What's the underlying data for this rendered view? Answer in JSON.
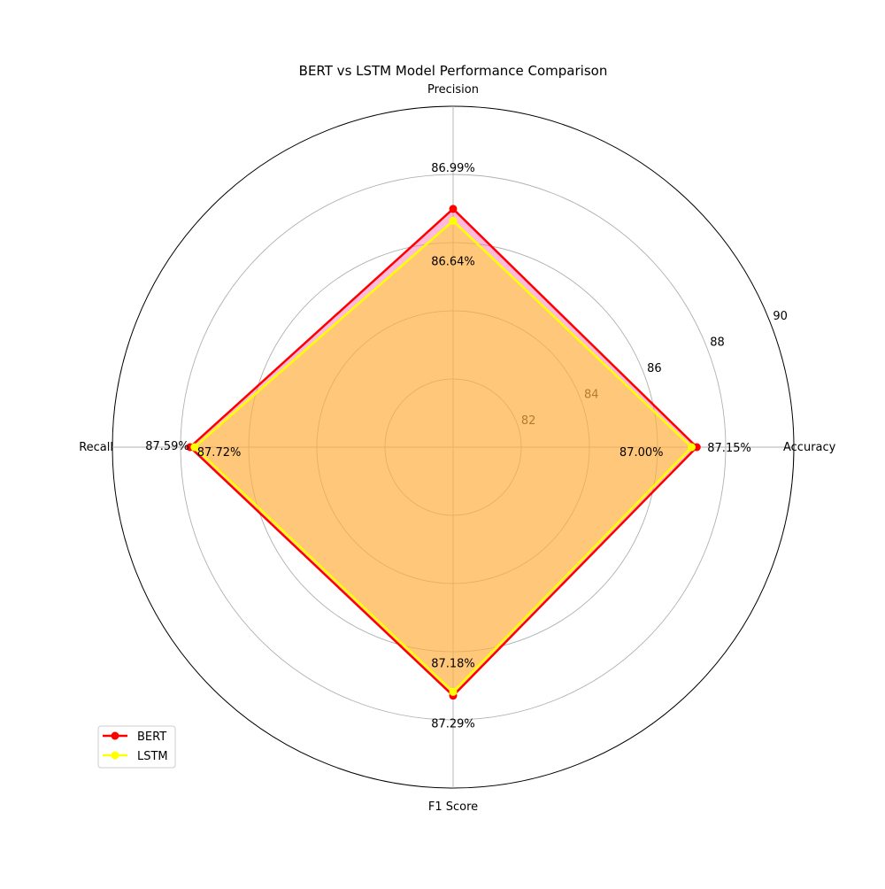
{
  "chart_data": {
    "type": "radar",
    "title": "BERT vs LSTM Model Performance Comparison",
    "categories": [
      "Accuracy",
      "Precision",
      "Recall",
      "F1 Score"
    ],
    "radial_range": [
      80,
      90
    ],
    "radial_ticks": [
      82,
      84,
      86,
      88,
      90
    ],
    "grid": true,
    "legend_position": "lower-left",
    "series": [
      {
        "name": "BERT",
        "values": [
          87.15,
          86.99,
          87.72,
          87.29
        ],
        "labels": [
          "87.15%",
          "86.99%",
          "87.72%",
          "87.29%"
        ],
        "line_color": "#ff0000",
        "fill_color": "#ff69b4"
      },
      {
        "name": "LSTM",
        "values": [
          87.0,
          86.64,
          87.59,
          87.18
        ],
        "labels": [
          "87.00%",
          "86.64%",
          "87.59%",
          "87.18%"
        ],
        "line_color": "#ffff00",
        "fill_color": "#ffd700"
      }
    ]
  }
}
